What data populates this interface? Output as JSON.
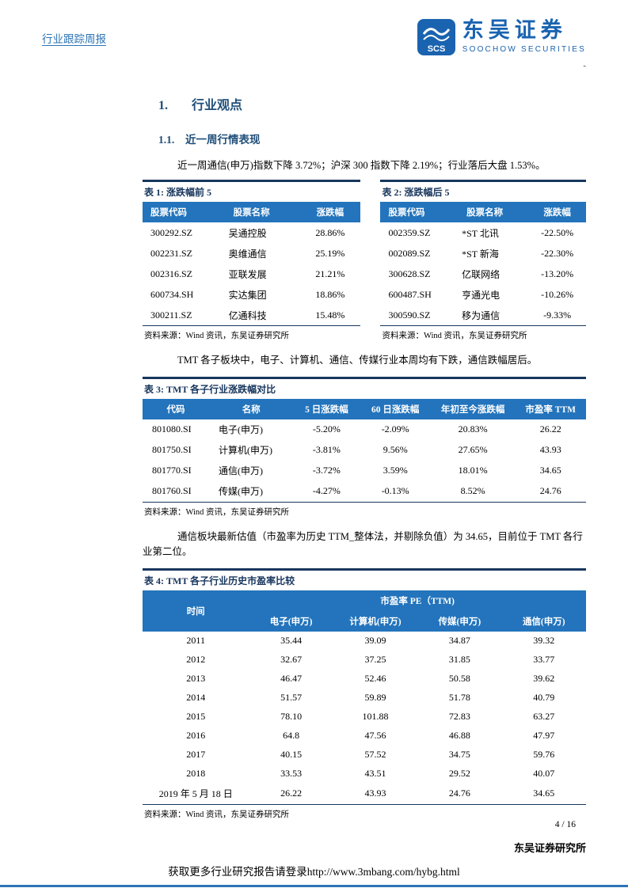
{
  "header": {
    "report_type": "行业跟踪周报",
    "logo": {
      "abbr": "SCS",
      "name_cn": "东吴证券",
      "name_en": "SOOCHOW SECURITIES"
    },
    "dash": "-"
  },
  "headings": {
    "h1_num": "1.",
    "h1_text": "行业观点",
    "h2_num": "1.1.",
    "h2_text": "近一周行情表现"
  },
  "paragraphs": {
    "p1": "近一周通信(申万)指数下降 3.72%；沪深 300 指数下降 2.19%；行业落后大盘 1.53%。",
    "p2": "TMT 各子板块中，电子、计算机、通信、传媒行业本周均有下跌，通信跌幅居后。",
    "p3": "通信板块最新估值（市盈率为历史 TTM_整体法，并剔除负值）为 34.65，目前位于 TMT 各行业第二位。"
  },
  "table1": {
    "title": "表 1: 涨跌幅前 5",
    "headers": [
      "股票代码",
      "股票名称",
      "涨跌幅"
    ],
    "rows": [
      [
        "300292.SZ",
        "吴通控股",
        "28.86%"
      ],
      [
        "002231.SZ",
        "奥维通信",
        "25.19%"
      ],
      [
        "002316.SZ",
        "亚联发展",
        "21.21%"
      ],
      [
        "600734.SH",
        "实达集团",
        "18.86%"
      ],
      [
        "300211.SZ",
        "亿通科技",
        "15.48%"
      ]
    ],
    "source": "资料来源：Wind 资讯，东吴证券研究所"
  },
  "table2": {
    "title": "表 2: 涨跌幅后 5",
    "headers": [
      "股票代码",
      "股票名称",
      "涨跌幅"
    ],
    "rows": [
      [
        "002359.SZ",
        "*ST 北讯",
        "-22.50%"
      ],
      [
        "002089.SZ",
        "*ST 新海",
        "-22.30%"
      ],
      [
        "300628.SZ",
        "亿联网络",
        "-13.20%"
      ],
      [
        "600487.SH",
        "亨通光电",
        "-10.26%"
      ],
      [
        "300590.SZ",
        "移为通信",
        "-9.33%"
      ]
    ],
    "source": "资料来源：Wind 资讯，东吴证券研究所"
  },
  "table3": {
    "title": "表 3: TMT 各子行业涨跌幅对比",
    "headers": [
      "代码",
      "名称",
      "5 日涨跌幅",
      "60 日涨跌幅",
      "年初至今涨跌幅",
      "市盈率 TTM"
    ],
    "rows": [
      [
        "801080.SI",
        "电子(申万)",
        "-5.20%",
        "-2.09%",
        "20.83%",
        "26.22"
      ],
      [
        "801750.SI",
        "计算机(申万)",
        "-3.81%",
        "9.56%",
        "27.65%",
        "43.93"
      ],
      [
        "801770.SI",
        "通信(申万)",
        "-3.72%",
        "3.59%",
        "18.01%",
        "34.65"
      ],
      [
        "801760.SI",
        "传媒(申万)",
        "-4.27%",
        "-0.13%",
        "8.52%",
        "24.76"
      ]
    ],
    "source": "资料来源：Wind 资讯，东吴证券研究所"
  },
  "table4": {
    "title": "表 4: TMT 各子行业历史市盈率比较",
    "time_header": "时间",
    "group_header": "市盈率 PE（TTM)",
    "sub_headers": [
      "电子(申万)",
      "计算机(申万)",
      "传媒(申万)",
      "通信(申万)"
    ],
    "rows": [
      [
        "2011",
        "35.44",
        "39.09",
        "34.87",
        "39.32"
      ],
      [
        "2012",
        "32.67",
        "37.25",
        "31.85",
        "33.77"
      ],
      [
        "2013",
        "46.47",
        "52.46",
        "50.58",
        "39.62"
      ],
      [
        "2014",
        "51.57",
        "59.89",
        "51.78",
        "40.79"
      ],
      [
        "2015",
        "78.10",
        "101.88",
        "72.83",
        "63.27"
      ],
      [
        "2016",
        "64.8",
        "47.56",
        "46.88",
        "47.97"
      ],
      [
        "2017",
        "40.15",
        "57.52",
        "34.75",
        "59.76"
      ],
      [
        "2018",
        "33.53",
        "43.51",
        "29.52",
        "40.07"
      ],
      [
        "2019 年 5 月 18 日",
        "26.22",
        "43.93",
        "24.76",
        "34.65"
      ]
    ],
    "source": "资料来源：Wind 资讯，东吴证券研究所"
  },
  "footer": {
    "page_number": "4 / 16",
    "org": "东吴证券研究所",
    "link": "获取更多行业研究报告请登录http://www.3mbang.com/hybg.html"
  },
  "colors": {
    "accent_blue": "#2E74B5",
    "table_header_blue": "#2374BC",
    "navy": "#17365D",
    "logo_blue": "#1A63B0"
  }
}
